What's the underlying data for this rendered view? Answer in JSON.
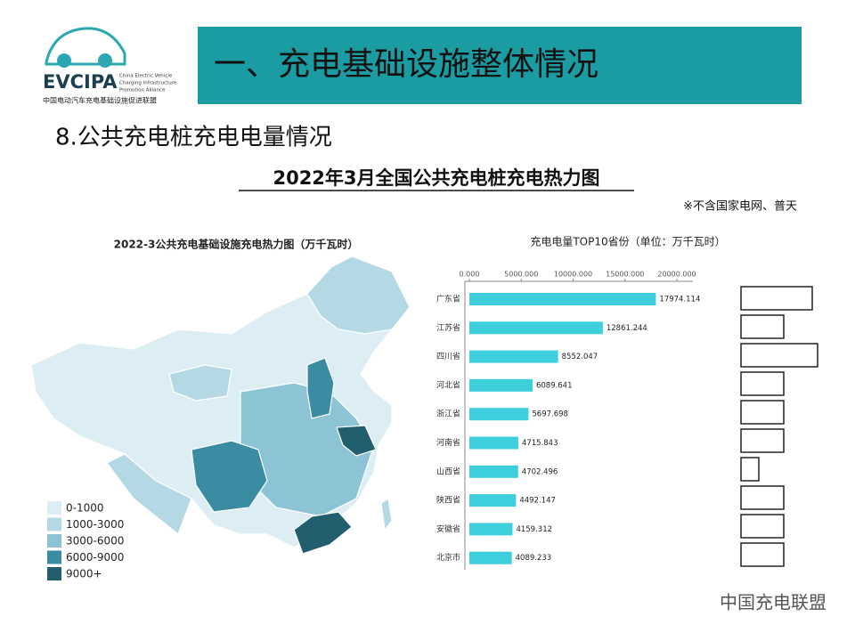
{
  "logo": {
    "name": "EVCIPA",
    "english": [
      "China Electric Vehicle",
      "Charging Infrastructure",
      "Promotion Alliance"
    ],
    "chinese": "中国电动汽车充电基础设施促进联盟"
  },
  "header": {
    "title": "一、充电基础设施整体情况"
  },
  "section": "8.公共充电桩充电电量情况",
  "slide_title": "2022年3月全国公共充电桩充电热力图",
  "note": "※不含国家电网、普天",
  "map": {
    "title": "2022-3公共充电基础设施充电热力图（万千瓦时）",
    "legend": [
      {
        "label": "0-1000",
        "color": "#dcedf3"
      },
      {
        "label": "1000-3000",
        "color": "#b5d8e5"
      },
      {
        "label": "3000-6000",
        "color": "#8cc3d5"
      },
      {
        "label": "6000-9000",
        "color": "#3a8ca2"
      },
      {
        "label": "9000+",
        "color": "#215e6e"
      }
    ]
  },
  "chart_data": {
    "type": "bar",
    "orientation": "horizontal",
    "title": "充电电量TOP10省份（单位：万千瓦时）",
    "categories": [
      "广东省",
      "江苏省",
      "四川省",
      "河北省",
      "浙江省",
      "河南省",
      "山西省",
      "陕西省",
      "安徽省",
      "北京市"
    ],
    "values": [
      17974.114,
      12861.244,
      8552.047,
      6089.641,
      5697.698,
      4715.843,
      4702.496,
      4492.147,
      4159.312,
      4089.233
    ],
    "color": "#3dd0dc",
    "xlim": [
      0,
      21500
    ],
    "xticks": [
      {
        "value": 0,
        "label": "0.000"
      },
      {
        "value": 5000,
        "label": "5000.000"
      },
      {
        "value": 10000,
        "label": "10000.000"
      },
      {
        "value": 15000,
        "label": "15000.000"
      },
      {
        "value": 20000,
        "label": "20000.000"
      }
    ],
    "grid": false
  },
  "watermark": "中国充电联盟"
}
